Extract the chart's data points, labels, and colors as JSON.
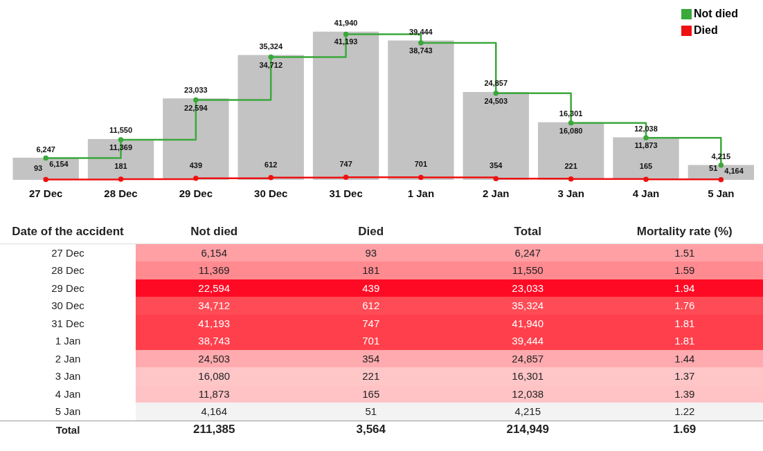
{
  "chart_data": [
    {
      "type": "bar",
      "categories": [
        "27 Dec",
        "28 Dec",
        "29 Dec",
        "30 Dec",
        "31 Dec",
        "1 Jan",
        "2 Jan",
        "3 Jan",
        "4 Jan",
        "5 Jan"
      ],
      "series": [
        {
          "type": "bar",
          "color": "#c3c3c3",
          "values": [
            6247,
            11550,
            23033,
            35324,
            41940,
            39444,
            24857,
            16301,
            12038,
            4215
          ],
          "value_labels": [
            "6,247",
            "11,550",
            "23,033",
            "35,324",
            "41,940",
            "39,444",
            "24,857",
            "16,301",
            "12,038",
            "4,215"
          ]
        },
        {
          "type": "step",
          "name": "Not died",
          "color": "#3aa83a",
          "values": [
            6154,
            11369,
            22594,
            34712,
            41193,
            38743,
            24503,
            16080,
            11873,
            4164
          ],
          "value_labels": [
            "6,154",
            "11,369",
            "22,594",
            "34,712",
            "41,193",
            "38,743",
            "24,503",
            "16,080",
            "11,873",
            "4,164"
          ]
        },
        {
          "type": "step",
          "name": "Died",
          "color": "#ee1111",
          "values": [
            93,
            181,
            439,
            612,
            747,
            701,
            354,
            221,
            165,
            51
          ],
          "value_labels": [
            "93",
            "181",
            "439",
            "612",
            "747",
            "701",
            "354",
            "221",
            "165",
            "51"
          ]
        }
      ],
      "marker": "circle",
      "legend": "top right",
      "grid": false
    },
    {
      "type": "other",
      "ylabel": "Date of the accident",
      "categories": [
        "Not died",
        "Died",
        "Total",
        "Mortality rate (%)"
      ],
      "y_categories": [
        "27 Dec",
        "28 Dec",
        "29 Dec",
        "30 Dec",
        "31 Dec",
        "1 Jan",
        "2 Jan",
        "3 Jan",
        "4 Jan",
        "5 Jan",
        "Total"
      ],
      "cell_labels": [
        [
          "6,154",
          "93",
          "6,247",
          "1.51"
        ],
        [
          "11,369",
          "181",
          "11,550",
          "1.59"
        ],
        [
          "22,594",
          "439",
          "23,033",
          "1.94"
        ],
        [
          "34,712",
          "612",
          "35,324",
          "1.76"
        ],
        [
          "41,193",
          "747",
          "41,940",
          "1.81"
        ],
        [
          "38,743",
          "701",
          "39,444",
          "1.81"
        ],
        [
          "24,503",
          "354",
          "24,857",
          "1.44"
        ],
        [
          "16,080",
          "221",
          "16,301",
          "1.37"
        ],
        [
          "11,873",
          "165",
          "12,038",
          "1.39"
        ],
        [
          "4,164",
          "51",
          "4,215",
          "1.22"
        ],
        [
          "211,385",
          "3,564",
          "214,949",
          "1.69"
        ]
      ],
      "colors": [
        "#ffa0a5",
        "#ff8a90",
        "#ff0a24",
        "#ff4b55",
        "#ff404c",
        "#ff404c",
        "#ffaaae",
        "#ffc6c8",
        "#ffc3c5",
        "#f3f3f3",
        null
      ]
    }
  ]
}
